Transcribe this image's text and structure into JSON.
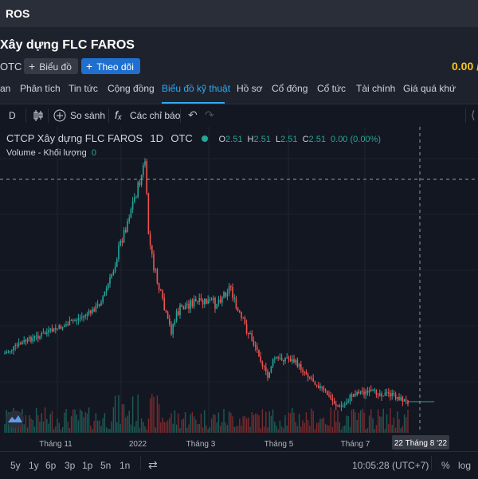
{
  "titlebar": {
    "title": "ROS"
  },
  "header": {
    "company_name": "Xây dựng FLC FAROS",
    "exchange": "OTC",
    "chart_button": "Biểu đồ",
    "follow_button": "Theo dõi",
    "price": "0.00 /"
  },
  "tabs": [
    {
      "label": "an"
    },
    {
      "label": "Phân tích"
    },
    {
      "label": "Tin tức"
    },
    {
      "label": "Cộng đồng"
    },
    {
      "label": "Biểu đồ kỹ thuật",
      "active": true
    },
    {
      "label": "Hồ sơ"
    },
    {
      "label": "Cổ đông"
    },
    {
      "label": "Cổ tức"
    },
    {
      "label": "Tài chính"
    },
    {
      "label": "Giá quá khứ"
    }
  ],
  "toolbar": {
    "interval": "D",
    "compare": "So sánh",
    "indicators": "Các chỉ báo"
  },
  "legend": {
    "symbol": "CTCP Xây dựng FLC FAROS",
    "interval": "1D",
    "exchange": "OTC",
    "open_label": "O",
    "open": "2.51",
    "high_label": "H",
    "high": "2.51",
    "low_label": "L",
    "low": "2.51",
    "close_label": "C",
    "close": "2.51",
    "change": "0.00 (0.00%)",
    "volume_label": "Volume - Khối lượng",
    "volume_value": "0"
  },
  "axis": {
    "x_ticks": [
      "Tháng 11",
      "2022",
      "Tháng 3",
      "Tháng 5",
      "Tháng 7"
    ],
    "crosshair_date": "22 Tháng 8 '22"
  },
  "bottombar": {
    "ranges": [
      "5y",
      "1y",
      "6p",
      "3p",
      "1p",
      "5n",
      "1n"
    ],
    "time": "10:05:28 (UTC+7)",
    "percent": "%",
    "log": "log"
  },
  "colors": {
    "up": "#26a69a",
    "down": "#ef5350",
    "accent": "#2eaaf5",
    "price": "#f5c518"
  },
  "chart_data": {
    "type": "candlestick",
    "x_ticks": [
      "Tháng 11",
      "2022",
      "Tháng 3",
      "Tháng 5",
      "Tháng 7"
    ],
    "current_close": 2.51,
    "crosshair_date": "22 Tháng 8 '22"
  }
}
